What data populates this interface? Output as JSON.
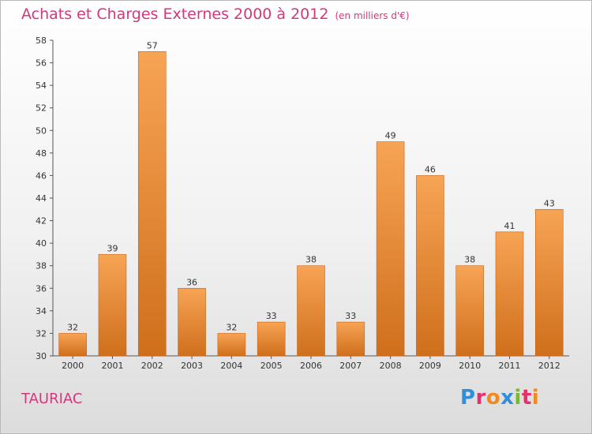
{
  "header": {
    "title": "Achats et Charges Externes 2000 à 2012",
    "subtitle": "(en milliers d'€)"
  },
  "footer": {
    "commune": "TAURIAC",
    "logo_text": "Proxiti",
    "logo_colors": [
      "#2f8fd8",
      "#e5306c",
      "#f28a1e",
      "#2f8fd8",
      "#7ab82e",
      "#e5306c",
      "#f28a1e"
    ]
  },
  "chart_data": {
    "type": "bar",
    "categories": [
      "2000",
      "2001",
      "2002",
      "2003",
      "2004",
      "2005",
      "2006",
      "2007",
      "2008",
      "2009",
      "2010",
      "2011",
      "2012"
    ],
    "values": [
      32,
      39,
      57,
      36,
      32,
      33,
      38,
      33,
      49,
      46,
      38,
      41,
      43
    ],
    "ylim": [
      30,
      58
    ],
    "yticks": [
      30,
      32,
      34,
      36,
      38,
      40,
      42,
      44,
      46,
      48,
      50,
      52,
      54,
      56,
      58
    ],
    "grid": false,
    "bar_color_top": "#f7a455",
    "bar_color_bottom": "#cf6f1c",
    "xlabel": "",
    "ylabel": ""
  }
}
